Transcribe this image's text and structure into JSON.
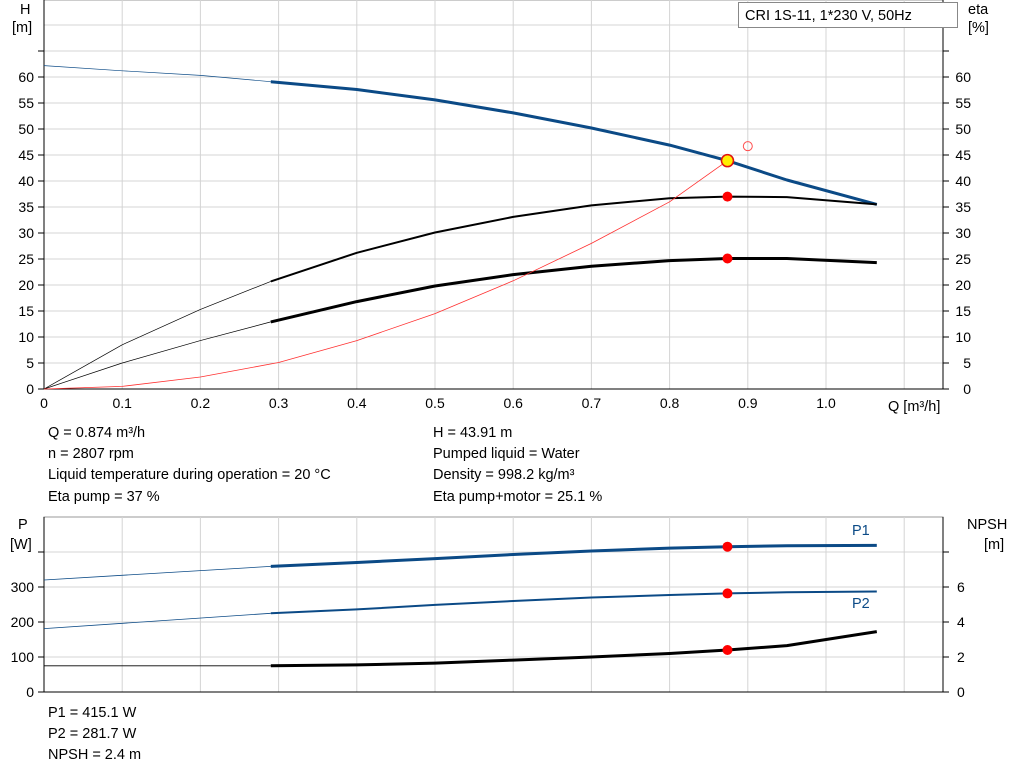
{
  "chart_data": [
    {
      "type": "line",
      "title": "CRI 1S-11, 1*230 V, 50Hz",
      "ylabel": "H",
      "yunit": "[m]",
      "y2label": "eta",
      "y2unit": "[%]",
      "xlabel": "Q [m³/h]",
      "xlim": [
        0,
        1.15
      ],
      "ylim": [
        0,
        70
      ],
      "grid": true,
      "xticks": [
        "0",
        "0.1",
        "0.2",
        "0.3",
        "0.4",
        "0.5",
        "0.6",
        "0.7",
        "0.8",
        "0.9",
        "1.0"
      ],
      "yticks": [
        "0",
        "5",
        "10",
        "15",
        "20",
        "25",
        "30",
        "35",
        "40",
        "45",
        "50",
        "55",
        "60"
      ],
      "series": [
        {
          "id": "H",
          "color": "#0b4a86",
          "thin": [
            [
              0,
              62.2
            ],
            [
              0.1,
              61.2
            ],
            [
              0.2,
              60.3
            ],
            [
              0.29,
              59.1
            ]
          ],
          "thick": [
            [
              0.29,
              59.1
            ],
            [
              0.4,
              57.6
            ],
            [
              0.5,
              55.6
            ],
            [
              0.6,
              53.1
            ],
            [
              0.7,
              50.2
            ],
            [
              0.8,
              46.9
            ],
            [
              0.874,
              43.91
            ],
            [
              0.95,
              40.2
            ],
            [
              1.065,
              35.5
            ]
          ]
        },
        {
          "id": "eta-pump",
          "color": "#000000",
          "thin": [
            [
              0,
              0
            ],
            [
              0.1,
              8.5
            ],
            [
              0.2,
              15.3
            ],
            [
              0.29,
              20.7
            ]
          ],
          "thick": [
            [
              0.29,
              20.7
            ],
            [
              0.4,
              26.2
            ],
            [
              0.5,
              30.1
            ],
            [
              0.6,
              33.1
            ],
            [
              0.7,
              35.3
            ],
            [
              0.8,
              36.7
            ],
            [
              0.874,
              37
            ],
            [
              0.95,
              36.9
            ],
            [
              1.065,
              35.5
            ]
          ]
        },
        {
          "id": "eta-pump-motor",
          "color": "#000000",
          "thin": [
            [
              0,
              0
            ],
            [
              0.1,
              5
            ],
            [
              0.2,
              9.3
            ],
            [
              0.29,
              12.9
            ]
          ],
          "thick": [
            [
              0.29,
              12.9
            ],
            [
              0.4,
              16.8
            ],
            [
              0.5,
              19.8
            ],
            [
              0.6,
              22
            ],
            [
              0.7,
              23.6
            ],
            [
              0.8,
              24.7
            ],
            [
              0.874,
              25.1
            ],
            [
              0.95,
              25.1
            ],
            [
              1.065,
              24.3
            ]
          ]
        },
        {
          "id": "system",
          "color": "#ff3030",
          "thin": [
            [
              0,
              0
            ],
            [
              0.1,
              0.5
            ],
            [
              0.2,
              2.3
            ],
            [
              0.3,
              5.1
            ],
            [
              0.4,
              9.3
            ],
            [
              0.5,
              14.5
            ],
            [
              0.6,
              20.8
            ],
            [
              0.7,
              28
            ],
            [
              0.8,
              36
            ],
            [
              0.874,
              43.91
            ]
          ],
          "thick": []
        }
      ],
      "duty_point": {
        "q": 0.874,
        "h": 43.91,
        "eta_pump": 37,
        "eta_total": 25.1
      },
      "setpoint": {
        "q": 0.9,
        "h": 46.7
      }
    },
    {
      "type": "line",
      "ylabel": "P",
      "yunit": "[W]",
      "y2label": "NPSH",
      "y2unit": "[m]",
      "xlim": [
        0,
        1.15
      ],
      "ylim": [
        0,
        500
      ],
      "y2lim": [
        0,
        10
      ],
      "grid": true,
      "yticks": [
        "0",
        "100",
        "200",
        "300"
      ],
      "y2ticks": [
        "0",
        "2",
        "4",
        "6"
      ],
      "series": [
        {
          "name": "P1",
          "color": "#0b4a86",
          "axis": "P",
          "thin": [
            [
              0,
              320
            ],
            [
              0.29,
              359
            ]
          ],
          "thick": [
            [
              0.29,
              359
            ],
            [
              0.4,
              370
            ],
            [
              0.5,
              381
            ],
            [
              0.6,
              393
            ],
            [
              0.7,
              403
            ],
            [
              0.8,
              411
            ],
            [
              0.874,
              415.1
            ],
            [
              0.95,
              418
            ],
            [
              1.065,
              419
            ]
          ]
        },
        {
          "name": "P2",
          "color": "#0b4a86",
          "axis": "P",
          "thin": [
            [
              0,
              181
            ],
            [
              0.29,
              225
            ]
          ],
          "thick": [
            [
              0.29,
              225
            ],
            [
              0.4,
              236
            ],
            [
              0.5,
              249
            ],
            [
              0.6,
              260
            ],
            [
              0.7,
              270
            ],
            [
              0.8,
              277
            ],
            [
              0.874,
              281.7
            ],
            [
              0.95,
              285
            ],
            [
              1.065,
              287
            ]
          ]
        },
        {
          "id": "NPSH",
          "color": "#000000",
          "axis": "NPSH",
          "thin": [
            [
              0,
              1.5
            ],
            [
              0.29,
              1.5
            ]
          ],
          "thick": [
            [
              0.29,
              1.5
            ],
            [
              0.4,
              1.55
            ],
            [
              0.5,
              1.65
            ],
            [
              0.6,
              1.82
            ],
            [
              0.7,
              2.0
            ],
            [
              0.8,
              2.2
            ],
            [
              0.874,
              2.4
            ],
            [
              0.95,
              2.65
            ],
            [
              1.065,
              3.45
            ]
          ]
        }
      ],
      "duty_point": {
        "q": 0.874,
        "p1": 415.1,
        "p2": 281.7,
        "npsh": 2.4
      }
    }
  ],
  "readouts": {
    "q": "Q = 0.874 m³/h",
    "n": "n = 2807 rpm",
    "temp": "Liquid temperature during operation = 20 °C",
    "eta": "Eta pump = 37 %",
    "h": "H = 43.91 m",
    "liquid": "Pumped liquid = Water",
    "density": "Density = 998.2 kg/m³",
    "eta_total": "Eta pump+motor = 25.1 %",
    "p1": "P1 = 415.1 W",
    "p2": "P2 = 281.7 W",
    "npsh": "NPSH = 2.4 m"
  }
}
